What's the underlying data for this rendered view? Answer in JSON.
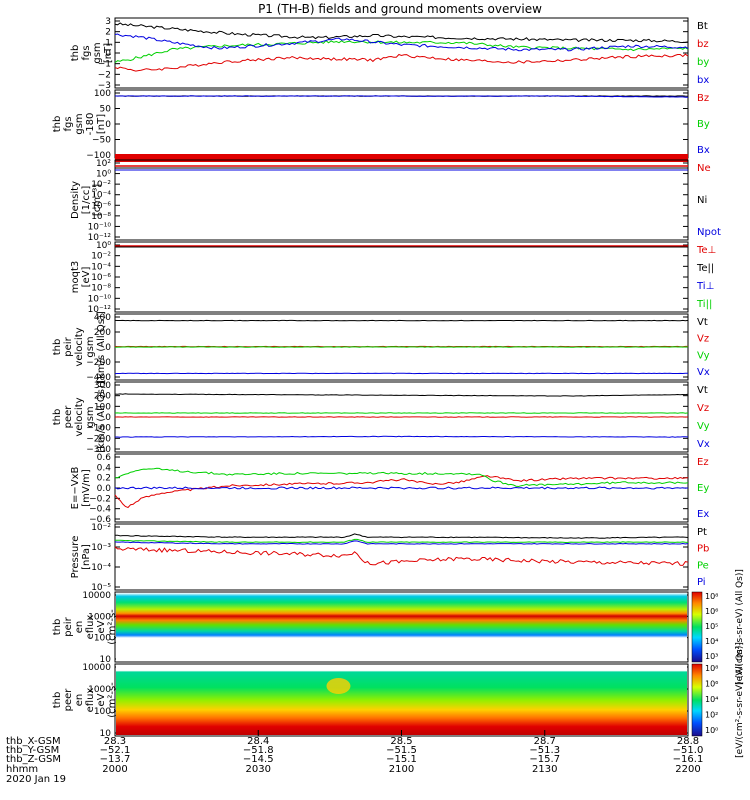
{
  "chart_data": {
    "type": "line",
    "title": "P1 (TH-B) fields and ground moments overview",
    "panels": [
      {
        "id": "fgs1",
        "ylabel": [
          "thb",
          "fgs",
          "gsm",
          "[nT]"
        ],
        "ylim": [
          -3,
          3
        ],
        "yticks": [
          "3",
          "2",
          "1",
          "0",
          "−1",
          "−2",
          "−3"
        ],
        "legend": [
          {
            "name": "Bt",
            "color": "#000000"
          },
          {
            "name": "bz",
            "color": "#e00000"
          },
          {
            "name": "by",
            "color": "#00d000"
          },
          {
            "name": "bx",
            "color": "#0000e0"
          }
        ],
        "series": [
          {
            "name": "Bt",
            "color": "#000000",
            "x": [
              0,
              0.05,
              0.12,
              0.22,
              0.35,
              0.45,
              0.5,
              0.6,
              0.7,
              0.8,
              0.9,
              1.0
            ],
            "y": [
              2.5,
              2.3,
              2.0,
              1.6,
              1.3,
              1.5,
              1.4,
              1.3,
              1.2,
              1.1,
              1.1,
              1.0
            ]
          },
          {
            "name": "bz",
            "color": "#e00000",
            "x": [
              0,
              0.04,
              0.1,
              0.18,
              0.3,
              0.45,
              0.5,
              0.6,
              0.7,
              0.8,
              0.9,
              1.0
            ],
            "y": [
              -1.2,
              -1.5,
              -1.3,
              -0.8,
              -0.4,
              -0.6,
              -0.2,
              -0.6,
              -0.8,
              -0.6,
              -0.3,
              -0.2
            ]
          },
          {
            "name": "by",
            "color": "#00d000",
            "x": [
              0,
              0.04,
              0.1,
              0.18,
              0.3,
              0.4,
              0.5,
              0.6,
              0.7,
              0.8,
              0.9,
              1.0
            ],
            "y": [
              -0.8,
              -0.4,
              0.3,
              0.6,
              0.8,
              1.0,
              0.9,
              0.9,
              0.5,
              0.4,
              0.3,
              0.4
            ]
          },
          {
            "name": "bx",
            "color": "#0000e0",
            "x": [
              0,
              0.04,
              0.1,
              0.18,
              0.3,
              0.4,
              0.5,
              0.6,
              0.7,
              0.8,
              0.9,
              1.0
            ],
            "y": [
              1.6,
              1.4,
              0.9,
              0.4,
              0.8,
              1.2,
              0.7,
              0.5,
              0.3,
              0.3,
              0.6,
              0.5
            ]
          }
        ]
      },
      {
        "id": "fgs2",
        "ylabel": [
          "thb",
          "fgs",
          "gsm",
          "-180",
          "[nT]"
        ],
        "ylim": [
          -150,
          120
        ],
        "yticks": [
          "100",
          "50",
          "0",
          "−50",
          "−100"
        ],
        "legend": [
          {
            "name": "Bz",
            "color": "#e00000"
          },
          {
            "name": "By",
            "color": "#00d000"
          },
          {
            "name": "Bx",
            "color": "#0000e0"
          }
        ],
        "series": [
          {
            "name": "B",
            "color": "#000000",
            "x": [
              0,
              1.0
            ],
            "y": [
              96,
              96
            ]
          },
          {
            "name": "Bx",
            "color": "#0000e0",
            "x": [
              0.76,
              1.0
            ],
            "y": [
              96,
              92
            ]
          }
        ]
      },
      {
        "id": "density",
        "ylabel": [
          "Density",
          "[1/cc]",
          "[cm⁻³]"
        ],
        "yticks": [
          "10²",
          "10⁰",
          "10⁻²",
          "10⁻⁴",
          "10⁻⁶",
          "10⁻⁸",
          "10⁻¹⁰",
          "10⁻¹²"
        ],
        "legend": [
          {
            "name": "Ne",
            "color": "#e00000"
          },
          {
            "name": "Ni",
            "color": "#000000"
          },
          {
            "name": "Npot",
            "color": "#0000e0"
          }
        ]
      },
      {
        "id": "temperature",
        "ylabel": [
          "moqt3",
          "[eV]"
        ],
        "yticks": [
          "10⁰",
          "10⁻²",
          "10⁻⁴",
          "10⁻⁶",
          "10⁻⁸",
          "10⁻¹⁰",
          "10⁻¹²"
        ],
        "legend": [
          {
            "name": "Te⊥",
            "color": "#e00000"
          },
          {
            "name": "Te||",
            "color": "#000000"
          },
          {
            "name": "Ti⊥",
            "color": "#0000e0"
          },
          {
            "name": "Ti||",
            "color": "#00d000"
          }
        ]
      },
      {
        "id": "peir_vel",
        "ylabel": [
          "thb",
          "peir",
          "velocity",
          "gsm",
          "[km/s (All Qs)]"
        ],
        "ylim": [
          -400,
          400
        ],
        "yticks": [
          "400",
          "200",
          "0",
          "−200",
          "−400"
        ],
        "legend": [
          {
            "name": "Vt",
            "color": "#000000"
          },
          {
            "name": "Vz",
            "color": "#e00000"
          },
          {
            "name": "Vy",
            "color": "#00d000"
          },
          {
            "name": "Vx",
            "color": "#0000e0"
          }
        ],
        "series": [
          {
            "name": "Vt",
            "color": "#000000",
            "x": [
              0,
              1.0
            ],
            "y": [
              320,
              320
            ]
          },
          {
            "name": "Vz",
            "color": "#e00000",
            "x": [
              0,
              1.0
            ],
            "y": [
              5,
              5
            ]
          },
          {
            "name": "Vy",
            "color": "#00d000",
            "x": [
              0,
              1.0
            ],
            "y": [
              0,
              0
            ]
          },
          {
            "name": "Vx",
            "color": "#0000e0",
            "x": [
              0,
              1.0
            ],
            "y": [
              -320,
              -320
            ]
          }
        ]
      },
      {
        "id": "peer_vel",
        "ylabel": [
          "thb",
          "peer",
          "velocity",
          "gsm",
          "[km/s (All Qs)]"
        ],
        "ylim": [
          -350,
          350
        ],
        "yticks": [
          "300",
          "200",
          "100",
          "0",
          "−100",
          "−200",
          "−300"
        ],
        "legend": [
          {
            "name": "Vt",
            "color": "#000000"
          },
          {
            "name": "Vz",
            "color": "#e00000"
          },
          {
            "name": "Vy",
            "color": "#00d000"
          },
          {
            "name": "Vx",
            "color": "#0000e0"
          }
        ],
        "series": [
          {
            "name": "Vt",
            "color": "#000000",
            "x": [
              0,
              0.4,
              0.8,
              1.0
            ],
            "y": [
              230,
              220,
              210,
              225
            ]
          },
          {
            "name": "Vz",
            "color": "#e00000",
            "x": [
              0,
              1.0
            ],
            "y": [
              0,
              0
            ]
          },
          {
            "name": "Vy",
            "color": "#00d000",
            "x": [
              0,
              1.0
            ],
            "y": [
              40,
              40
            ]
          },
          {
            "name": "Vx",
            "color": "#0000e0",
            "x": [
              0,
              0.5,
              1.0
            ],
            "y": [
              -200,
              -195,
              -200
            ]
          }
        ]
      },
      {
        "id": "efield",
        "ylabel": [
          "E=−VxB",
          "[mV/m]"
        ],
        "ylim": [
          -0.7,
          0.7
        ],
        "yticks": [
          "0.6",
          "0.4",
          "0.2",
          "0.0",
          "−0.2",
          "−0.4",
          "−0.6"
        ],
        "legend": [
          {
            "name": "Ez",
            "color": "#e00000"
          },
          {
            "name": "Ey",
            "color": "#00d000"
          },
          {
            "name": "Ex",
            "color": "#0000e0"
          }
        ],
        "series": [
          {
            "name": "Ez",
            "color": "#e00000",
            "x": [
              0,
              0.02,
              0.05,
              0.08,
              0.12,
              0.16,
              0.2,
              0.3,
              0.4,
              0.45,
              0.5,
              0.55,
              0.6,
              0.65,
              0.7,
              0.8,
              0.9,
              1.0
            ],
            "y": [
              -0.15,
              -0.4,
              -0.2,
              -0.1,
              -0.05,
              0.0,
              0.05,
              0.08,
              0.1,
              0.12,
              0.18,
              0.08,
              0.12,
              0.25,
              0.15,
              0.2,
              0.2,
              0.2
            ]
          },
          {
            "name": "Ey",
            "color": "#00d000",
            "x": [
              0,
              0.03,
              0.06,
              0.1,
              0.15,
              0.2,
              0.3,
              0.4,
              0.5,
              0.6,
              0.64,
              0.66,
              0.7,
              0.8,
              0.9,
              1.0
            ],
            "y": [
              0.2,
              0.35,
              0.4,
              0.36,
              0.32,
              0.28,
              0.3,
              0.3,
              0.3,
              0.3,
              0.28,
              0.15,
              0.05,
              0.08,
              0.12,
              0.1
            ]
          },
          {
            "name": "Ex",
            "color": "#0000e0",
            "x": [
              0,
              1.0
            ],
            "y": [
              0.0,
              0.0
            ]
          }
        ]
      },
      {
        "id": "pressure",
        "ylabel": [
          "Pressure",
          "[nPa]"
        ],
        "yticks": [
          "10⁻²",
          "10⁻³",
          "10⁻⁴",
          "10⁻⁵"
        ],
        "legend": [
          {
            "name": "Pt",
            "color": "#000000"
          },
          {
            "name": "Pb",
            "color": "#e00000"
          },
          {
            "name": "Pe",
            "color": "#00d000"
          },
          {
            "name": "Pi",
            "color": "#0000e0"
          }
        ]
      },
      {
        "id": "peir_spec",
        "ylabel": [
          "thb",
          "peir",
          "en",
          "eflux",
          "eV",
          "(cm²-s-",
          "sr-eV)"
        ],
        "yticks": [
          "10000",
          "1000",
          "100",
          "10"
        ],
        "colorbar_ticks": [
          "10⁸",
          "10⁶",
          "10⁵",
          "10⁴",
          "10³"
        ],
        "colorbar_label": "[eV/(cm²-s-sr-eV) (All Qs)]"
      },
      {
        "id": "peer_spec",
        "ylabel": [
          "thb",
          "peer",
          "en",
          "eflux",
          "eV",
          "(cm²-s-",
          "sr-eV)"
        ],
        "yticks": [
          "10000",
          "1000",
          "100",
          "10"
        ],
        "colorbar_ticks": [
          "10⁸",
          "10⁶",
          "10⁴",
          "10²",
          "10⁰"
        ],
        "colorbar_label": "[eV/(cm²-s-sr-eV) (All Qs)]"
      }
    ],
    "xaxis": {
      "row_labels": [
        "thb_X-GSM",
        "thb_Y-GSM",
        "thb_Z-GSM",
        "hhmm",
        "2020 Jan 19"
      ],
      "ticks": [
        {
          "values": [
            "28.3",
            "−52.1",
            "−13.7",
            "2000"
          ]
        },
        {
          "values": [
            "28.4",
            "−51.8",
            "−14.5",
            "2030"
          ]
        },
        {
          "values": [
            "28.5",
            "−51.5",
            "−15.1",
            "2100"
          ]
        },
        {
          "values": [
            "28.7",
            "−51.3",
            "−15.7",
            "2130"
          ]
        },
        {
          "values": [
            "28.8",
            "−51.0",
            "−16.1",
            "2200"
          ]
        }
      ]
    }
  }
}
